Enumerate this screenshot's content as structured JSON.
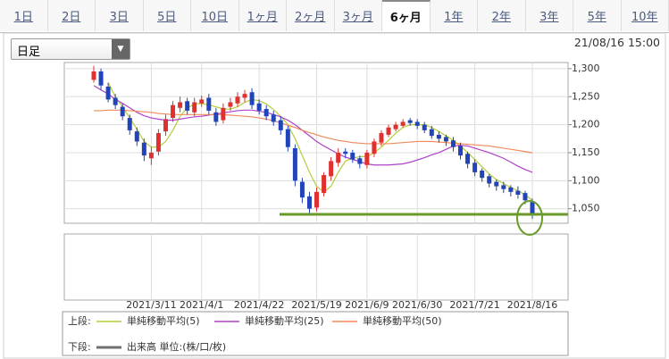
{
  "tabs": [
    {
      "label": "1日"
    },
    {
      "label": "2日"
    },
    {
      "label": "3日"
    },
    {
      "label": "5日"
    },
    {
      "label": "10日"
    },
    {
      "label": "1ヶ月"
    },
    {
      "label": "2ヶ月"
    },
    {
      "label": "3ヶ月"
    },
    {
      "label": "6ヶ月",
      "active": true
    },
    {
      "label": "1年"
    },
    {
      "label": "2年"
    },
    {
      "label": "3年"
    },
    {
      "label": "5年"
    },
    {
      "label": "10年"
    }
  ],
  "selector": "日足",
  "timestamp": "21/08/16 15:00",
  "legend": {
    "upper_label": "上段:",
    "lower_label": "下段:",
    "lower_item": "出来高 単位:(株/口/枚)",
    "lower_color": "#707070"
  },
  "chart_data": {
    "type": "candlestick",
    "categories": [
      null,
      null,
      null,
      null,
      null,
      null,
      null,
      null,
      "2021/3/11",
      null,
      null,
      null,
      null,
      null,
      null,
      "2021/4/1",
      null,
      null,
      null,
      null,
      null,
      null,
      null,
      "2021/4/22",
      null,
      null,
      null,
      null,
      null,
      null,
      null,
      "2021/5/19",
      null,
      null,
      null,
      null,
      null,
      null,
      "2021/6/9",
      null,
      null,
      null,
      null,
      null,
      null,
      "2021/6/30",
      null,
      null,
      null,
      null,
      null,
      null,
      null,
      "2021/7/21",
      null,
      null,
      null,
      null,
      null,
      null,
      null,
      "2021/8/16"
    ],
    "open": [
      1280,
      1295,
      1268,
      1248,
      1232,
      1212,
      1188,
      1168,
      1140,
      1152,
      1188,
      1212,
      1230,
      1242,
      1222,
      1238,
      1248,
      1222,
      1208,
      1232,
      1238,
      1248,
      1258,
      1238,
      1228,
      1218,
      1208,
      1192,
      1158,
      1098,
      1072,
      1052,
      1078,
      1108,
      1132,
      1152,
      1150,
      1140,
      1128,
      1148,
      1168,
      1182,
      1192,
      1198,
      1208,
      1205,
      1200,
      1192,
      1182,
      1178,
      1172,
      1162,
      1148,
      1132,
      1118,
      1108,
      1098,
      1092,
      1088,
      1082,
      1078,
      1062
    ],
    "high": [
      1305,
      1300,
      1275,
      1255,
      1238,
      1218,
      1195,
      1175,
      1160,
      1192,
      1218,
      1242,
      1250,
      1248,
      1248,
      1252,
      1255,
      1230,
      1238,
      1248,
      1258,
      1262,
      1265,
      1245,
      1235,
      1225,
      1215,
      1198,
      1165,
      1105,
      1080,
      1088,
      1115,
      1142,
      1158,
      1158,
      1155,
      1145,
      1155,
      1175,
      1190,
      1200,
      1205,
      1210,
      1212,
      1210,
      1205,
      1198,
      1188,
      1182,
      1178,
      1168,
      1152,
      1138,
      1122,
      1112,
      1102,
      1098,
      1092,
      1090,
      1082,
      1068
    ],
    "low": [
      1275,
      1262,
      1240,
      1228,
      1208,
      1182,
      1162,
      1135,
      1128,
      1145,
      1180,
      1205,
      1222,
      1218,
      1215,
      1232,
      1218,
      1198,
      1202,
      1225,
      1232,
      1240,
      1228,
      1218,
      1208,
      1198,
      1182,
      1152,
      1090,
      1060,
      1040,
      1045,
      1072,
      1100,
      1125,
      1140,
      1132,
      1122,
      1122,
      1142,
      1162,
      1178,
      1188,
      1195,
      1198,
      1192,
      1185,
      1175,
      1168,
      1162,
      1152,
      1138,
      1122,
      1108,
      1098,
      1088,
      1082,
      1078,
      1072,
      1068,
      1058,
      1032
    ],
    "close": [
      1295,
      1270,
      1245,
      1235,
      1215,
      1190,
      1170,
      1145,
      1150,
      1185,
      1210,
      1235,
      1240,
      1225,
      1240,
      1245,
      1225,
      1205,
      1230,
      1240,
      1250,
      1255,
      1235,
      1225,
      1215,
      1205,
      1190,
      1160,
      1100,
      1070,
      1050,
      1080,
      1110,
      1135,
      1150,
      1148,
      1138,
      1130,
      1150,
      1170,
      1185,
      1195,
      1200,
      1205,
      1203,
      1198,
      1190,
      1180,
      1175,
      1170,
      1160,
      1145,
      1130,
      1115,
      1105,
      1095,
      1090,
      1085,
      1080,
      1075,
      1065,
      1040
    ],
    "up_color": "#e03030",
    "down_color": "#2244bb",
    "series": [
      {
        "name": "単純移動平均(5)",
        "color": "#b5cc3a",
        "values": [
          null,
          null,
          1275,
          1250,
          1232,
          1212,
          1192,
          1170,
          1160,
          1160,
          1170,
          1190,
          1215,
          1230,
          1237,
          1238,
          1235,
          1232,
          1228,
          1228,
          1232,
          1240,
          1245,
          1243,
          1237,
          1227,
          1215,
          1200,
          1175,
          1145,
          1115,
          1090,
          1080,
          1090,
          1115,
          1135,
          1140,
          1143,
          1143,
          1150,
          1160,
          1172,
          1185,
          1195,
          1200,
          1200,
          1200,
          1195,
          1188,
          1180,
          1172,
          1162,
          1150,
          1138,
          1125,
          1112,
          1102,
          1095,
          1088,
          1082,
          1075,
          1065
        ]
      },
      {
        "name": "単純移動平均(25)",
        "color": "#b040c8",
        "values": [
          1270,
          1262,
          1255,
          1245,
          1238,
          1230,
          1222,
          1216,
          1212,
          1210,
          1208,
          1208,
          1210,
          1212,
          1214,
          1215,
          1217,
          1219,
          1221,
          1223,
          1225,
          1226,
          1226,
          1224,
          1222,
          1218,
          1214,
          1208,
          1200,
          1190,
          1180,
          1170,
          1162,
          1155,
          1148,
          1142,
          1138,
          1134,
          1130,
          1128,
          1128,
          1128,
          1129,
          1130,
          1133,
          1137,
          1141,
          1146,
          1150,
          1156,
          1162,
          1163,
          1162,
          1158,
          1154,
          1150,
          1145,
          1140,
          1133,
          1126,
          1120,
          1115
        ]
      },
      {
        "name": "単純移動平均(50)",
        "color": "#f08a5a",
        "values": [
          1225,
          1225,
          1226,
          1226,
          1226,
          1225,
          1224,
          1223,
          1222,
          1220,
          1219,
          1218,
          1218,
          1218,
          1218,
          1218,
          1218,
          1218,
          1218,
          1217,
          1216,
          1215,
          1214,
          1212,
          1210,
          1207,
          1203,
          1199,
          1195,
          1190,
          1186,
          1182,
          1178,
          1175,
          1172,
          1170,
          1168,
          1167,
          1166,
          1166,
          1166,
          1166,
          1167,
          1168,
          1169,
          1170,
          1170,
          1170,
          1169,
          1168,
          1167,
          1166,
          1165,
          1164,
          1163,
          1162,
          1160,
          1158,
          1156,
          1154,
          1152,
          1150
        ]
      }
    ],
    "support_level": 1040,
    "support_color": "#6a9a2a",
    "ylim": [
      1024,
      1311
    ],
    "yticks": [
      {
        "value": 1050,
        "label": "1,050"
      },
      {
        "value": 1100,
        "label": "1,100"
      },
      {
        "value": 1150,
        "label": "1,150"
      },
      {
        "value": 1200,
        "label": "1,200"
      },
      {
        "value": 1250,
        "label": "1,250"
      },
      {
        "value": 1300,
        "label": "1,300"
      }
    ],
    "grid": true
  }
}
